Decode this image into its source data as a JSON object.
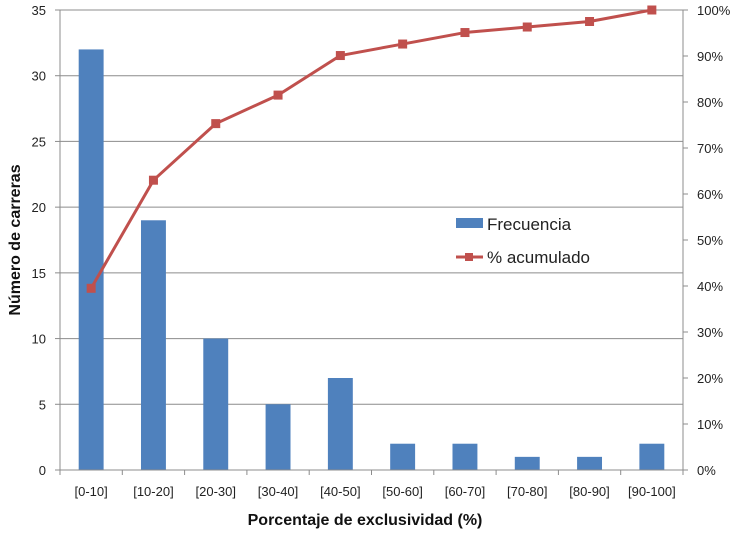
{
  "chart_data": {
    "type": "bar+line",
    "categories": [
      "[0-10]",
      "[10-20]",
      "[20-30]",
      "[30-40]",
      "[40-50]",
      "[50-60]",
      "[60-70]",
      "[70-80]",
      "[80-90]",
      "[90-100]"
    ],
    "series": [
      {
        "name": "Frecuencia",
        "type": "bar",
        "axis": "left",
        "color": "#4f81bd",
        "values": [
          32,
          19,
          10,
          5,
          7,
          2,
          2,
          1,
          1,
          2
        ]
      },
      {
        "name": "% acumulado",
        "type": "line",
        "axis": "right",
        "color": "#c0504d",
        "values": [
          39.5,
          63.0,
          75.3,
          81.5,
          90.1,
          92.6,
          95.1,
          96.3,
          97.5,
          100.0
        ]
      }
    ],
    "xlabel": "Porcentaje de exclusividad  (%)",
    "ylabel": "Número de carreras",
    "ylim": [
      0,
      35
    ],
    "yticks": [
      "0",
      "5",
      "10",
      "15",
      "20",
      "25",
      "30",
      "35"
    ],
    "y2lim": [
      0,
      100
    ],
    "y2ticks": [
      "0%",
      "10%",
      "20%",
      "30%",
      "40%",
      "50%",
      "60%",
      "70%",
      "80%",
      "90%",
      "100%"
    ],
    "legend": [
      "Frecuencia",
      "% acumulado"
    ],
    "legend_position": "center-right",
    "grid": true
  }
}
